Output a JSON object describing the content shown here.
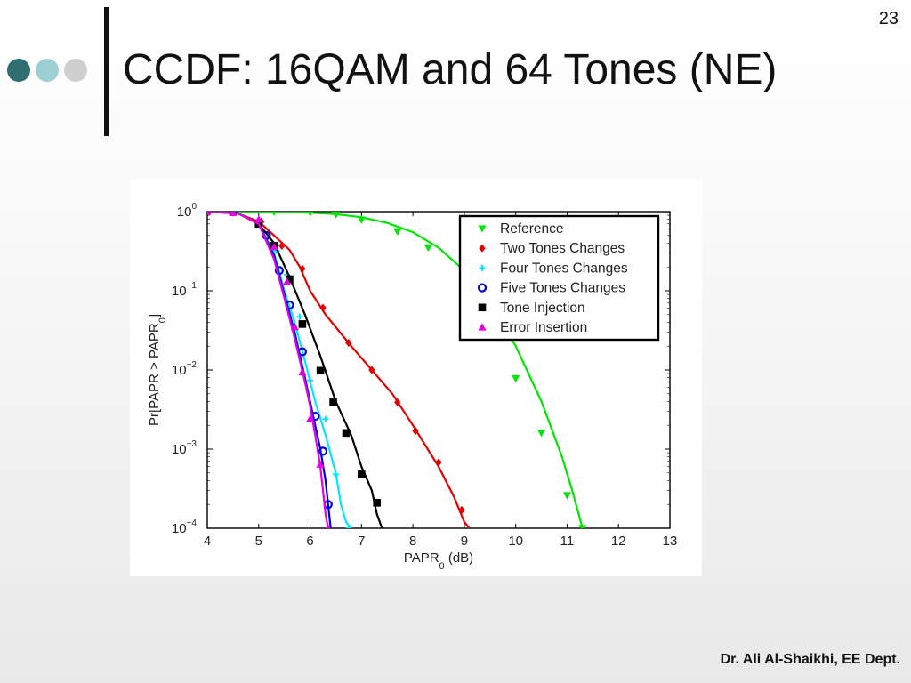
{
  "slide": {
    "number": "23",
    "title": "CCDF: 16QAM and 64 Tones (NE)",
    "footer": "Dr. Ali Al-Shaikhi, EE Dept.",
    "bullet_colors": [
      "#2f6f72",
      "#9ccfd3",
      "#cfcfcf"
    ]
  },
  "chart_data": {
    "type": "line",
    "title": "",
    "xlabel": "PAPR",
    "xlabel_sub": "0",
    "xlabel_unit": " (dB)",
    "ylabel": "Pr[PAPR > PAPR",
    "ylabel_sub": "0",
    "ylabel_end": "]",
    "xlim": [
      4,
      13
    ],
    "ylim": [
      0.0001,
      1
    ],
    "yscale": "log",
    "xticks": [
      4,
      5,
      6,
      7,
      8,
      9,
      10,
      11,
      12,
      13
    ],
    "yticks": [
      {
        "value": 1,
        "base": "10",
        "exp": "0"
      },
      {
        "value": 0.1,
        "base": "10",
        "exp": "−1"
      },
      {
        "value": 0.01,
        "base": "10",
        "exp": "−2"
      },
      {
        "value": 0.001,
        "base": "10",
        "exp": "−3"
      },
      {
        "value": 0.0001,
        "base": "10",
        "exp": "−4"
      }
    ],
    "grid": false,
    "legend_position": "top-right",
    "series": [
      {
        "name": "Reference",
        "color": "#00e600",
        "marker": "triangle-down",
        "curve": [
          [
            4.0,
            1.0
          ],
          [
            4.5,
            1.0
          ],
          [
            5.0,
            0.995
          ],
          [
            5.5,
            0.99
          ],
          [
            6.0,
            0.97
          ],
          [
            6.5,
            0.93
          ],
          [
            7.0,
            0.85
          ],
          [
            7.5,
            0.72
          ],
          [
            8.0,
            0.55
          ],
          [
            8.5,
            0.35
          ],
          [
            9.0,
            0.18
          ],
          [
            9.5,
            0.07
          ],
          [
            10.0,
            0.02
          ],
          [
            10.5,
            0.004
          ],
          [
            10.9,
            0.0008
          ],
          [
            11.1,
            0.0003
          ],
          [
            11.3,
            0.0001
          ]
        ],
        "markers": [
          [
            4.5,
            1.0
          ],
          [
            5.3,
            0.99
          ],
          [
            6.0,
            0.97
          ],
          [
            6.5,
            0.92
          ],
          [
            7.0,
            0.79
          ],
          [
            7.7,
            0.56
          ],
          [
            8.3,
            0.35
          ],
          [
            9.0,
            0.14
          ],
          [
            9.4,
            0.061
          ],
          [
            9.7,
            0.026
          ],
          [
            10.0,
            0.0078
          ],
          [
            10.5,
            0.0016
          ],
          [
            11.0,
            0.00026
          ],
          [
            11.3,
            0.0001
          ]
        ]
      },
      {
        "name": "Two Tones Changes",
        "color": "#e60000",
        "marker": "diamond",
        "curve": [
          [
            4.0,
            1.0
          ],
          [
            4.5,
            1.0
          ],
          [
            5.0,
            0.75
          ],
          [
            5.3,
            0.5
          ],
          [
            5.6,
            0.33
          ],
          [
            5.8,
            0.2
          ],
          [
            6.0,
            0.1
          ],
          [
            6.3,
            0.05
          ],
          [
            6.8,
            0.02
          ],
          [
            7.2,
            0.01
          ],
          [
            7.6,
            0.005
          ],
          [
            8.0,
            0.002
          ],
          [
            8.5,
            0.0006
          ],
          [
            8.8,
            0.00025
          ],
          [
            9.0,
            0.00012
          ],
          [
            9.1,
            0.0001
          ]
        ],
        "markers": [
          [
            4.5,
            1.0
          ],
          [
            5.05,
            0.75
          ],
          [
            5.45,
            0.37
          ],
          [
            5.85,
            0.19
          ],
          [
            6.25,
            0.061
          ],
          [
            6.75,
            0.022
          ],
          [
            7.2,
            0.01
          ],
          [
            7.7,
            0.0039
          ],
          [
            8.05,
            0.0017
          ],
          [
            8.5,
            0.00068
          ],
          [
            8.95,
            0.00017
          ]
        ]
      },
      {
        "name": "Four Tones Changes",
        "color": "#00e6ff",
        "marker": "star",
        "curve": [
          [
            4.0,
            1.0
          ],
          [
            4.6,
            0.95
          ],
          [
            5.0,
            0.7
          ],
          [
            5.3,
            0.3
          ],
          [
            5.5,
            0.1
          ],
          [
            5.7,
            0.04
          ],
          [
            5.9,
            0.013
          ],
          [
            6.1,
            0.004
          ],
          [
            6.3,
            0.0015
          ],
          [
            6.5,
            0.0005
          ],
          [
            6.6,
            0.0002
          ],
          [
            6.7,
            0.00012
          ],
          [
            6.8,
            0.0001
          ]
        ],
        "markers": [
          [
            4.5,
            1.0
          ],
          [
            5.0,
            0.7
          ],
          [
            5.35,
            0.32
          ],
          [
            5.55,
            0.16
          ],
          [
            5.8,
            0.047
          ],
          [
            6.0,
            0.0074
          ],
          [
            6.3,
            0.0024
          ],
          [
            6.5,
            0.00048
          ],
          [
            6.75,
            0.0001
          ]
        ]
      },
      {
        "name": "Five Tones Changes",
        "color": "#0000e6",
        "marker": "circle",
        "curve": [
          [
            4.0,
            1.0
          ],
          [
            4.6,
            0.95
          ],
          [
            5.0,
            0.7
          ],
          [
            5.3,
            0.28
          ],
          [
            5.5,
            0.09
          ],
          [
            5.7,
            0.03
          ],
          [
            5.9,
            0.008
          ],
          [
            6.1,
            0.002
          ],
          [
            6.2,
            0.001
          ],
          [
            6.3,
            0.0004
          ],
          [
            6.35,
            0.0002
          ],
          [
            6.4,
            0.0001
          ]
        ],
        "markers": [
          [
            4.5,
            1.0
          ],
          [
            5.15,
            0.5
          ],
          [
            5.4,
            0.18
          ],
          [
            5.6,
            0.066
          ],
          [
            5.85,
            0.017
          ],
          [
            6.1,
            0.0026
          ],
          [
            6.25,
            0.00094
          ],
          [
            6.35,
            0.0002
          ]
        ]
      },
      {
        "name": "Tone Injection",
        "color": "#000000",
        "marker": "square",
        "curve": [
          [
            4.0,
            1.0
          ],
          [
            4.6,
            0.95
          ],
          [
            5.0,
            0.7
          ],
          [
            5.3,
            0.4
          ],
          [
            5.6,
            0.15
          ],
          [
            5.9,
            0.05
          ],
          [
            6.2,
            0.015
          ],
          [
            6.5,
            0.004
          ],
          [
            6.8,
            0.0015
          ],
          [
            7.0,
            0.0006
          ],
          [
            7.2,
            0.0003
          ],
          [
            7.3,
            0.00015
          ],
          [
            7.4,
            0.0001
          ]
        ],
        "markers": [
          [
            4.5,
            1.0
          ],
          [
            5.0,
            0.7
          ],
          [
            5.3,
            0.37
          ],
          [
            5.6,
            0.14
          ],
          [
            5.85,
            0.038
          ],
          [
            6.2,
            0.0098
          ],
          [
            6.45,
            0.0039
          ],
          [
            6.7,
            0.0016
          ],
          [
            7.0,
            0.00048
          ],
          [
            7.3,
            0.00021
          ]
        ]
      },
      {
        "name": "Error Insertion",
        "color": "#e600e6",
        "marker": "triangle-up",
        "curve": [
          [
            4.0,
            1.0
          ],
          [
            4.6,
            0.95
          ],
          [
            5.0,
            0.7
          ],
          [
            5.3,
            0.25
          ],
          [
            5.5,
            0.08
          ],
          [
            5.7,
            0.025
          ],
          [
            5.9,
            0.007
          ],
          [
            6.0,
            0.0035
          ],
          [
            6.1,
            0.0015
          ],
          [
            6.2,
            0.0006
          ],
          [
            6.25,
            0.0003
          ],
          [
            6.3,
            0.00015
          ],
          [
            6.35,
            0.0001
          ]
        ],
        "markers": [
          [
            4.0,
            1.0
          ],
          [
            4.5,
            0.97
          ],
          [
            5.0,
            0.8
          ],
          [
            5.3,
            0.36
          ],
          [
            5.55,
            0.13
          ],
          [
            5.7,
            0.035
          ],
          [
            5.85,
            0.0094
          ],
          [
            6.0,
            0.0024
          ],
          [
            6.2,
            0.00064
          ],
          [
            6.35,
            0.0001
          ]
        ]
      }
    ]
  }
}
